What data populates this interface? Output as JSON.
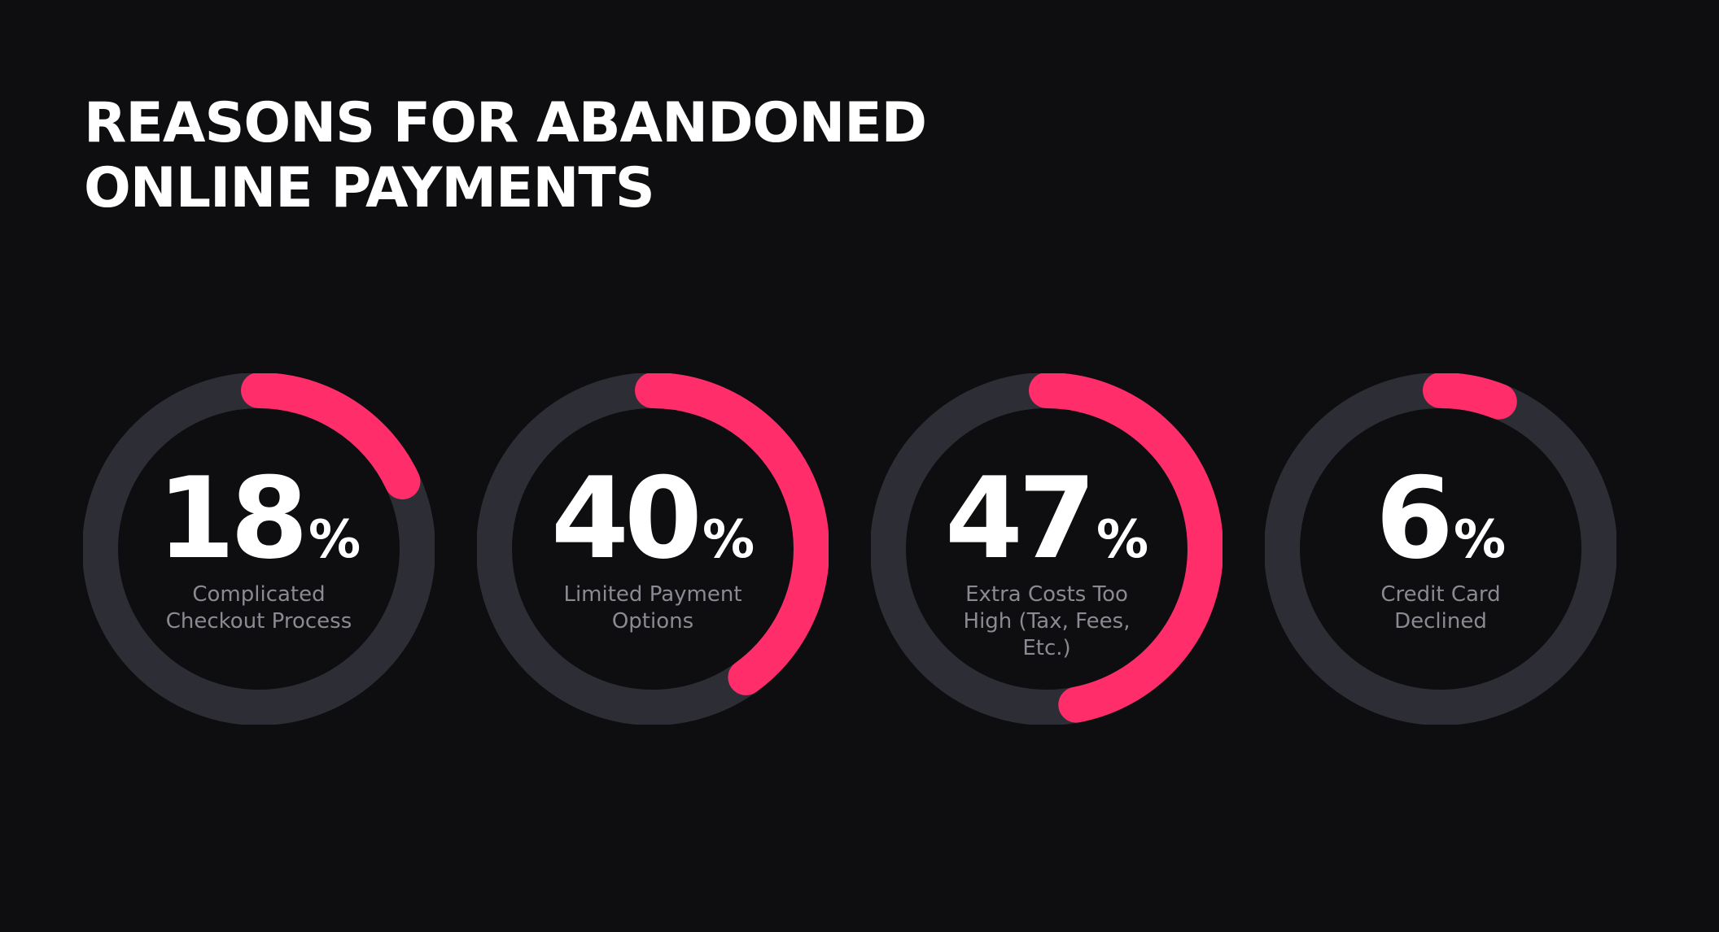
{
  "title_lines": [
    "REASONS FOR ABANDONED",
    "ONLINE PAYMENTS"
  ],
  "colors": {
    "background": "#0e0e10",
    "track": "#2d2d35",
    "accent": "#ff2e6b",
    "text": "#ffffff",
    "label": "#8a8a92"
  },
  "chart_data": [
    {
      "type": "donut",
      "value": 18,
      "unit": "%",
      "max": 100,
      "label": "Complicated Checkout Process"
    },
    {
      "type": "donut",
      "value": 40,
      "unit": "%",
      "max": 100,
      "label": "Limited Payment Options"
    },
    {
      "type": "donut",
      "value": 47,
      "unit": "%",
      "max": 100,
      "label": "Extra Costs Too High (Tax, Fees, Etc.)"
    },
    {
      "type": "donut",
      "value": 6,
      "unit": "%",
      "max": 100,
      "label": "Credit Card Declined"
    }
  ]
}
